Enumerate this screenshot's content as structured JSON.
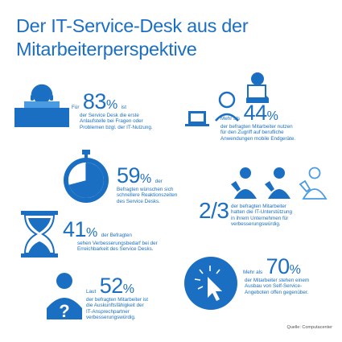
{
  "title": {
    "line1": "Der IT-Service-Desk aus der",
    "line2": "Mitarbeiterperspektive"
  },
  "stats": {
    "s83": {
      "pre": "Für",
      "value": "83",
      "pct": "%",
      "post": "ist",
      "lines": [
        "der Service Desk die erste",
        "Anlaufstelle bei Fragen oder",
        "Problemen bzgl. der IT-Nutzung."
      ]
    },
    "s44": {
      "pre": "Mehr als",
      "value": "44",
      "pct": "%",
      "lines": [
        "der befragten Mitarbeiter nutzen",
        "für den Zugriff auf berufliche",
        "Anwendungen mobile Endgeräte."
      ]
    },
    "s59": {
      "value": "59",
      "pct": "%",
      "post": "der",
      "lines": [
        "Befragten wünschen sich",
        "schnellere Reaktionszeiten",
        "des Service Desks."
      ]
    },
    "s23": {
      "value": "2/3",
      "lines": [
        "der befragten Mitarbeiter",
        "hatten die IT-Unterstützung",
        "in ihrem Unternehmen für",
        "verbesserungswürdig."
      ]
    },
    "s41": {
      "value": "41",
      "pct": "%",
      "post": "der Befragten",
      "lines": [
        "sehen Verbesserungsbedarf bei der",
        "Erreichbarkeit des Service Desks."
      ]
    },
    "s52": {
      "pre": "Laut",
      "value": "52",
      "pct": "%",
      "lines": [
        "der befragten Mitarbeiter ist",
        "die Auskunftsfähigkeit der",
        "IT-Ansprechpartner",
        "verbesserungswürdig."
      ]
    },
    "s70": {
      "pre": "Mehr als",
      "value": "70",
      "pct": "%",
      "lines": [
        "der Mitarbeiter stehen einem",
        "Ausbau von Self-Service-",
        "Angeboten offen gegenüber."
      ]
    }
  },
  "source": "Quelle: Computacenter",
  "colors": {
    "primary": "#1b6fc2",
    "light": "#4a9be0"
  }
}
